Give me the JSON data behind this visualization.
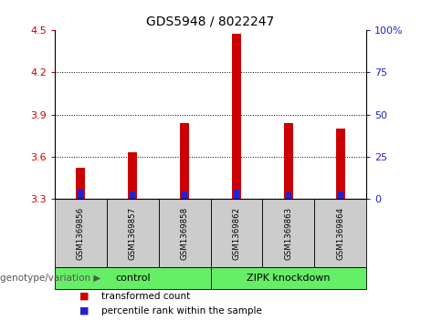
{
  "title": "GDS5948 / 8022247",
  "samples": [
    "GSM1369856",
    "GSM1369857",
    "GSM1369858",
    "GSM1369862",
    "GSM1369863",
    "GSM1369864"
  ],
  "red_tops": [
    3.52,
    3.63,
    3.84,
    4.47,
    3.84,
    3.8
  ],
  "blue_tops": [
    3.365,
    3.355,
    3.355,
    3.365,
    3.345,
    3.355
  ],
  "base": 3.3,
  "ylim_left": [
    3.3,
    4.5
  ],
  "ylim_right": [
    0,
    100
  ],
  "yticks_left": [
    3.3,
    3.6,
    3.9,
    4.2,
    4.5
  ],
  "yticks_right": [
    0,
    25,
    50,
    75,
    100
  ],
  "red_bar_width": 0.18,
  "blue_bar_width": 0.18,
  "red_color": "#cc0000",
  "blue_color": "#2222cc",
  "grid_color": "#000000",
  "groups": [
    {
      "label": "control",
      "cols": [
        0,
        1,
        2
      ]
    },
    {
      "label": "ZIPK knockdown",
      "cols": [
        3,
        4,
        5
      ]
    }
  ],
  "group_color": "#66ee66",
  "group_label_prefix": "genotype/variation",
  "legend_items": [
    {
      "color": "#cc0000",
      "label": "transformed count"
    },
    {
      "color": "#2222cc",
      "label": "percentile rank within the sample"
    }
  ],
  "tick_label_color_left": "#cc0000",
  "tick_label_color_right": "#2222cc",
  "sample_box_color": "#cccccc",
  "figsize": [
    4.61,
    3.63
  ],
  "dpi": 100
}
